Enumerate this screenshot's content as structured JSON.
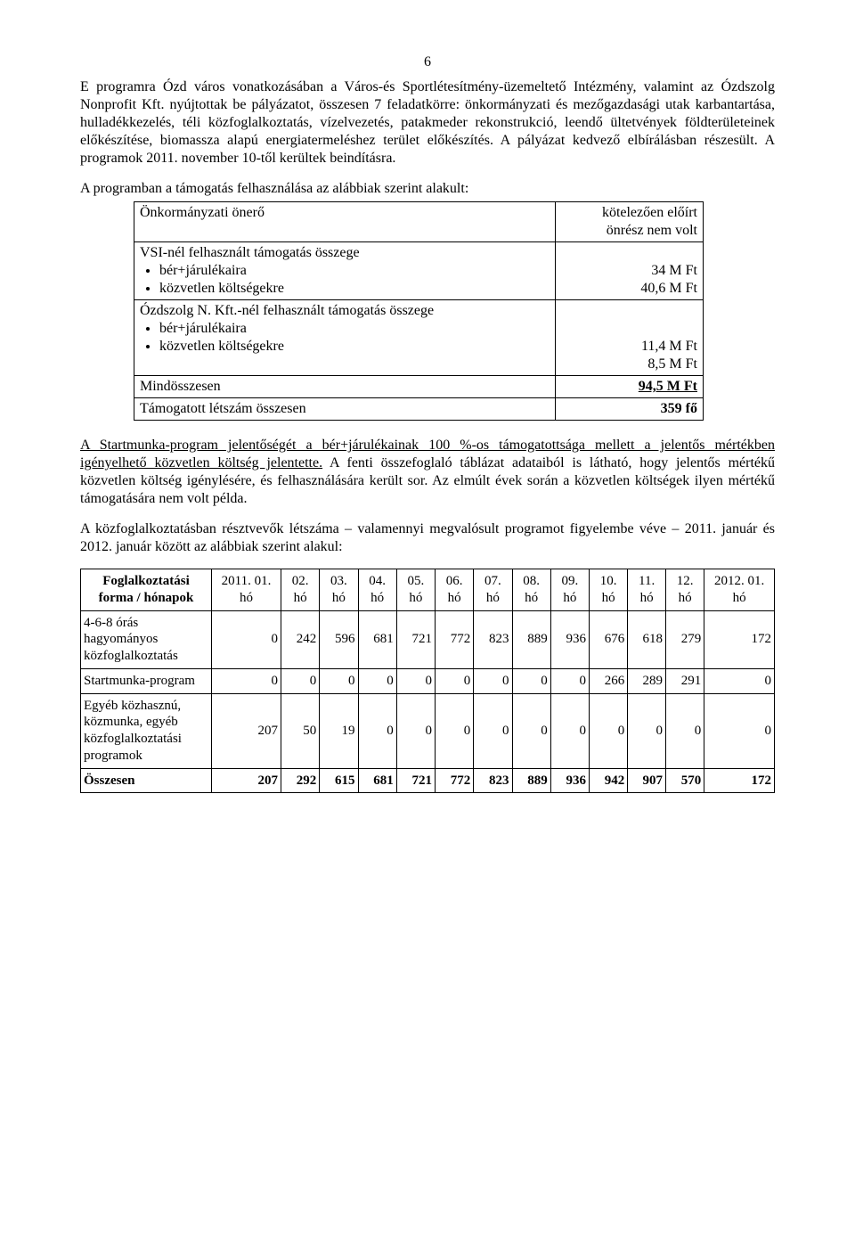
{
  "page_number": "6",
  "para1": "E programra Ózd város vonatkozásában a Város-és Sportlétesítmény-üzemeltető Intézmény, valamint az Ózdszolg Nonprofit Kft. nyújtottak be pályázatot, összesen 7 feladatkörre: önkormányzati és mezőgazdasági utak karbantartása, hulladékkezelés, téli közfoglalkoztatás, vízelvezetés, patakmeder rekonstrukció, leendő ültetvények földterületeinek előkészítése, biomassza alapú energiatermeléshez terület előkészítés. A pályázat kedvező elbírálásban részesült. A programok 2011. november 10-től kerültek beindításra.",
  "para2": "A programban a támogatás felhasználása az alábbiak szerint alakult:",
  "table1": {
    "r1_left": "Önkormányzati önerő",
    "r1_right_l1": "kötelezően előírt",
    "r1_right_l2": "önrész nem volt",
    "r2_left": "VSI-nél felhasznált támogatás összege",
    "r2_item1": "bér+járulékaira",
    "r2_item2": "közvetlen költségekre",
    "r2_val1": "34 M Ft",
    "r2_val2": "40,6 M Ft",
    "r3_left": "Ózdszolg N. Kft.-nél felhasznált támogatás összege",
    "r3_item1": "bér+járulékaira",
    "r3_item2": "közvetlen költségekre",
    "r3_val1": "11,4 M Ft",
    "r3_val2": "8,5 M Ft",
    "r4_left": "Mindösszesen",
    "r4_right": "94,5 M Ft",
    "r5_left": "Támogatott létszám összesen",
    "r5_right": "359 fő"
  },
  "para3_u": "A Startmunka-program jelentőségét a bér+járulékainak 100 %-os támogatottsága mellett a jelentős mértékben igényelhető közvetlen költség jelentette.",
  "para3_rest": " A fenti összefoglaló táblázat adataiból is látható, hogy jelentős mértékű közvetlen költség igénylésére, és felhasználására került sor. Az elmúlt évek során a közvetlen költségek ilyen mértékű támogatására nem volt példa.",
  "para4": "A közfoglalkoztatásban résztvevők létszáma – valamennyi megvalósult programot figyelembe véve – 2011. január és 2012. január között az alábbiak szerint alakul:",
  "table2": {
    "row_header_label": "Foglalkoztatási forma / hónapok",
    "columns": [
      "2011. 01. hó",
      "02. hó",
      "03. hó",
      "04. hó",
      "05. hó",
      "06. hó",
      "07. hó",
      "08. hó",
      "09. hó",
      "10. hó",
      "11. hó",
      "12. hó",
      "2012. 01. hó"
    ],
    "rows": [
      {
        "label": "4-6-8 órás hagyományos közfoglalkoztatás",
        "values": [
          "0",
          "242",
          "596",
          "681",
          "721",
          "772",
          "823",
          "889",
          "936",
          "676",
          "618",
          "279",
          "172"
        ]
      },
      {
        "label": "Startmunka-program",
        "values": [
          "0",
          "0",
          "0",
          "0",
          "0",
          "0",
          "0",
          "0",
          "0",
          "266",
          "289",
          "291",
          "0"
        ]
      },
      {
        "label": "Egyéb közhasznú, közmunka, egyéb közfoglalkoztatási programok",
        "values": [
          "207",
          "50",
          "19",
          "0",
          "0",
          "0",
          "0",
          "0",
          "0",
          "0",
          "0",
          "0",
          "0"
        ]
      }
    ],
    "total_label": "Összesen",
    "total_values": [
      "207",
      "292",
      "615",
      "681",
      "721",
      "772",
      "823",
      "889",
      "936",
      "942",
      "907",
      "570",
      "172"
    ]
  }
}
